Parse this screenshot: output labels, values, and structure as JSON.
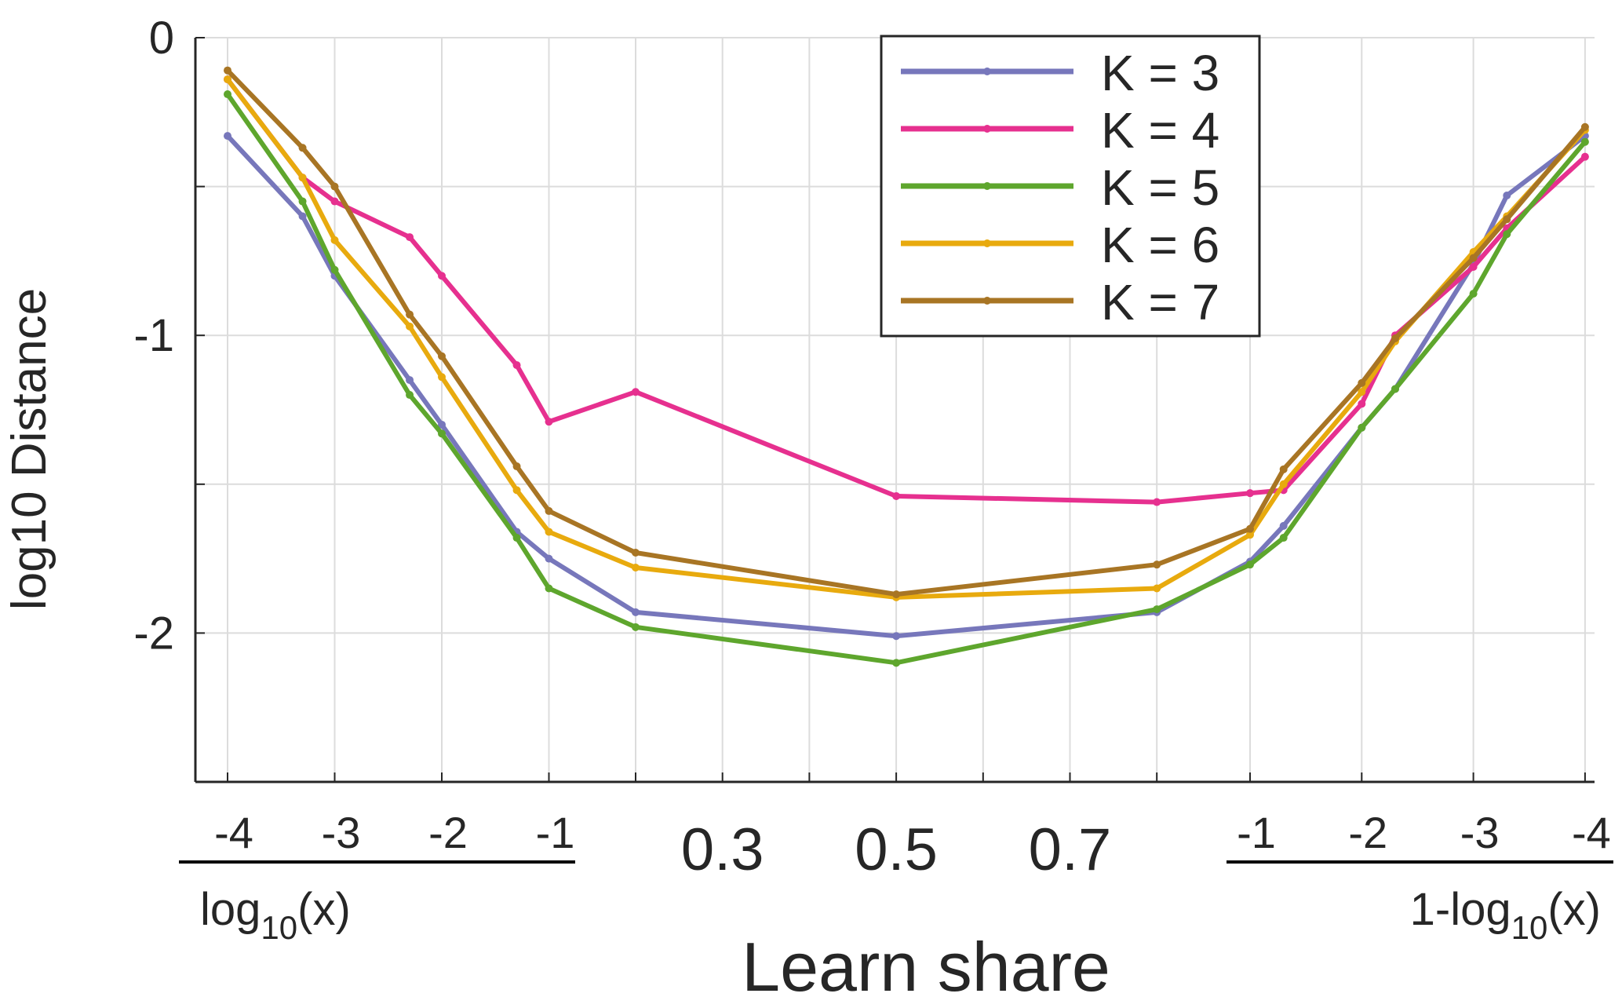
{
  "chart_data": {
    "type": "line",
    "ylabel": "log10 Distance",
    "xlabel": "Learn share",
    "ylim": [
      -2.5,
      0
    ],
    "yticks": [
      0,
      -0.5,
      -1,
      -1.5,
      -2,
      -2.5
    ],
    "ytick_labels": [
      "0",
      "",
      "-1",
      "",
      "-2",
      ""
    ],
    "grid": true,
    "legend_position": "top-right",
    "x_axis_note": "Composite x axis: left segment log10(x), middle segment linear share, right segment 1-log10(x)",
    "x_segments": [
      {
        "name": "left",
        "title_base": "log",
        "title_sub": "10",
        "title_rest": "(x)",
        "tick_labels": [
          "-4",
          "-3",
          "-2",
          "-1"
        ]
      },
      {
        "name": "middle",
        "tick_labels": [
          "0.3",
          "0.5",
          "0.7"
        ]
      },
      {
        "name": "right",
        "title_base": "1-log",
        "title_sub": "10",
        "title_rest": "(x)",
        "tick_labels": [
          "-1",
          "-2",
          "-3",
          "-4"
        ]
      }
    ],
    "series": [
      {
        "name": "K = 3",
        "color": "#7777bb",
        "points": [
          {
            "seg": "left",
            "x": -4,
            "y": -0.33
          },
          {
            "seg": "left",
            "x": -3.3,
            "y": -0.6
          },
          {
            "seg": "left",
            "x": -3,
            "y": -0.8
          },
          {
            "seg": "left",
            "x": -2.3,
            "y": -1.15
          },
          {
            "seg": "left",
            "x": -2,
            "y": -1.3
          },
          {
            "seg": "left",
            "x": -1.3,
            "y": -1.66
          },
          {
            "seg": "left",
            "x": -1,
            "y": -1.75
          },
          {
            "seg": "middle",
            "x": 0.2,
            "y": -1.93
          },
          {
            "seg": "middle",
            "x": 0.5,
            "y": -2.01
          },
          {
            "seg": "middle",
            "x": 0.8,
            "y": -1.93
          },
          {
            "seg": "right",
            "x": -1,
            "y": -1.76
          },
          {
            "seg": "right",
            "x": -1.3,
            "y": -1.64
          },
          {
            "seg": "right",
            "x": -2,
            "y": -1.31
          },
          {
            "seg": "right",
            "x": -2.3,
            "y": -1.18
          },
          {
            "seg": "right",
            "x": -3,
            "y": -0.76
          },
          {
            "seg": "right",
            "x": -3.3,
            "y": -0.53
          },
          {
            "seg": "right",
            "x": -4,
            "y": -0.33
          }
        ]
      },
      {
        "name": "K = 4",
        "color": "#e6308f",
        "points": [
          {
            "seg": "left",
            "x": -4,
            "y": -0.14
          },
          {
            "seg": "left",
            "x": -3.3,
            "y": -0.47
          },
          {
            "seg": "left",
            "x": -3,
            "y": -0.55
          },
          {
            "seg": "left",
            "x": -2.3,
            "y": -0.67
          },
          {
            "seg": "left",
            "x": -2,
            "y": -0.8
          },
          {
            "seg": "left",
            "x": -1.3,
            "y": -1.1
          },
          {
            "seg": "left",
            "x": -1,
            "y": -1.29
          },
          {
            "seg": "middle",
            "x": 0.2,
            "y": -1.19
          },
          {
            "seg": "middle",
            "x": 0.5,
            "y": -1.54
          },
          {
            "seg": "middle",
            "x": 0.8,
            "y": -1.56
          },
          {
            "seg": "right",
            "x": -1,
            "y": -1.53
          },
          {
            "seg": "right",
            "x": -1.3,
            "y": -1.52
          },
          {
            "seg": "right",
            "x": -2,
            "y": -1.23
          },
          {
            "seg": "right",
            "x": -2.3,
            "y": -1.0
          },
          {
            "seg": "right",
            "x": -3,
            "y": -0.77
          },
          {
            "seg": "right",
            "x": -3.3,
            "y": -0.64
          },
          {
            "seg": "right",
            "x": -4,
            "y": -0.4
          }
        ]
      },
      {
        "name": "K = 5",
        "color": "#5ea62d",
        "points": [
          {
            "seg": "left",
            "x": -4,
            "y": -0.19
          },
          {
            "seg": "left",
            "x": -3.3,
            "y": -0.55
          },
          {
            "seg": "left",
            "x": -3,
            "y": -0.78
          },
          {
            "seg": "left",
            "x": -2.3,
            "y": -1.2
          },
          {
            "seg": "left",
            "x": -2,
            "y": -1.33
          },
          {
            "seg": "left",
            "x": -1.3,
            "y": -1.68
          },
          {
            "seg": "left",
            "x": -1,
            "y": -1.85
          },
          {
            "seg": "middle",
            "x": 0.2,
            "y": -1.98
          },
          {
            "seg": "middle",
            "x": 0.5,
            "y": -2.1
          },
          {
            "seg": "middle",
            "x": 0.8,
            "y": -1.92
          },
          {
            "seg": "right",
            "x": -1,
            "y": -1.77
          },
          {
            "seg": "right",
            "x": -1.3,
            "y": -1.68
          },
          {
            "seg": "right",
            "x": -2,
            "y": -1.31
          },
          {
            "seg": "right",
            "x": -2.3,
            "y": -1.18
          },
          {
            "seg": "right",
            "x": -3,
            "y": -0.86
          },
          {
            "seg": "right",
            "x": -3.3,
            "y": -0.66
          },
          {
            "seg": "right",
            "x": -4,
            "y": -0.35
          }
        ]
      },
      {
        "name": "K = 6",
        "color": "#e8aa0e",
        "points": [
          {
            "seg": "left",
            "x": -4,
            "y": -0.14
          },
          {
            "seg": "left",
            "x": -3.3,
            "y": -0.47
          },
          {
            "seg": "left",
            "x": -3,
            "y": -0.68
          },
          {
            "seg": "left",
            "x": -2.3,
            "y": -0.97
          },
          {
            "seg": "left",
            "x": -2,
            "y": -1.14
          },
          {
            "seg": "left",
            "x": -1.3,
            "y": -1.52
          },
          {
            "seg": "left",
            "x": -1,
            "y": -1.66
          },
          {
            "seg": "middle",
            "x": 0.2,
            "y": -1.78
          },
          {
            "seg": "middle",
            "x": 0.5,
            "y": -1.88
          },
          {
            "seg": "middle",
            "x": 0.8,
            "y": -1.85
          },
          {
            "seg": "right",
            "x": -1,
            "y": -1.67
          },
          {
            "seg": "right",
            "x": -1.3,
            "y": -1.5
          },
          {
            "seg": "right",
            "x": -2,
            "y": -1.19
          },
          {
            "seg": "right",
            "x": -2.3,
            "y": -1.02
          },
          {
            "seg": "right",
            "x": -3,
            "y": -0.72
          },
          {
            "seg": "right",
            "x": -3.3,
            "y": -0.6
          },
          {
            "seg": "right",
            "x": -4,
            "y": -0.31
          }
        ]
      },
      {
        "name": "K = 7",
        "color": "#a87524",
        "points": [
          {
            "seg": "left",
            "x": -4,
            "y": -0.11
          },
          {
            "seg": "left",
            "x": -3.3,
            "y": -0.37
          },
          {
            "seg": "left",
            "x": -3,
            "y": -0.5
          },
          {
            "seg": "left",
            "x": -2.3,
            "y": -0.93
          },
          {
            "seg": "left",
            "x": -2,
            "y": -1.07
          },
          {
            "seg": "left",
            "x": -1.3,
            "y": -1.44
          },
          {
            "seg": "left",
            "x": -1,
            "y": -1.59
          },
          {
            "seg": "middle",
            "x": 0.2,
            "y": -1.73
          },
          {
            "seg": "middle",
            "x": 0.5,
            "y": -1.87
          },
          {
            "seg": "middle",
            "x": 0.8,
            "y": -1.77
          },
          {
            "seg": "right",
            "x": -1,
            "y": -1.65
          },
          {
            "seg": "right",
            "x": -1.3,
            "y": -1.45
          },
          {
            "seg": "right",
            "x": -2,
            "y": -1.16
          },
          {
            "seg": "right",
            "x": -2.3,
            "y": -1.01
          },
          {
            "seg": "right",
            "x": -3,
            "y": -0.74
          },
          {
            "seg": "right",
            "x": -3.3,
            "y": -0.61
          },
          {
            "seg": "right",
            "x": -4,
            "y": -0.3
          }
        ]
      }
    ]
  }
}
